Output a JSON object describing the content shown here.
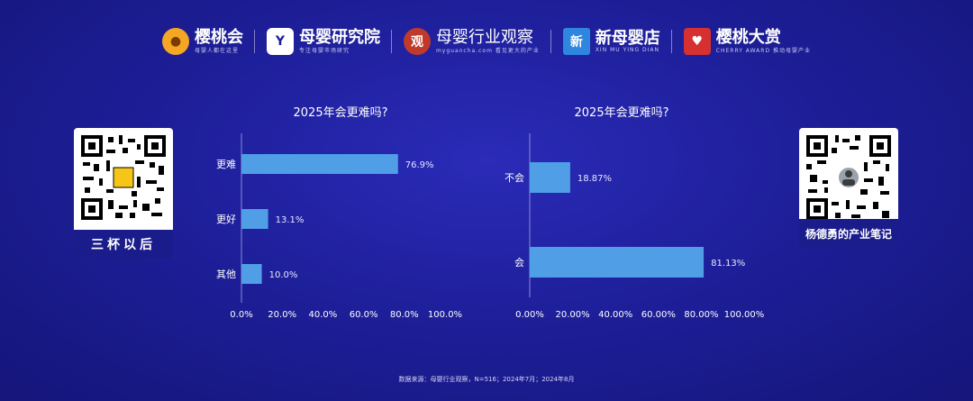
{
  "logos": [
    {
      "name": "樱桃会",
      "sub": "母婴人都在这里",
      "mark": "●",
      "color": "#f5a623"
    },
    {
      "name": "母婴研究院",
      "sub": "专注母婴市场研究",
      "mark": "Y",
      "color": "#3a7bd5"
    },
    {
      "name": "母婴行业观察",
      "sub": "myguancha.com 看见更大的产业",
      "mark": "观",
      "color": "#c0392b"
    },
    {
      "name": "新母婴店",
      "sub": "XIN MU YING DIAN",
      "mark": "新",
      "color": "#2e86de"
    },
    {
      "name": "樱桃大赏",
      "sub": "CHERRY AWARD 推动母婴产业",
      "mark": "♥",
      "color": "#d63031"
    }
  ],
  "qr_left": {
    "caption": "三杯以后"
  },
  "qr_right": {
    "caption": "杨德勇的产业笔记"
  },
  "footnote": "数据来源：母婴行业观察，N=516；2024年7月；2024年8月",
  "chart_data": [
    {
      "type": "bar",
      "orientation": "horizontal",
      "title": "2025年会更难吗?",
      "categories": [
        "更难",
        "更好",
        "其他"
      ],
      "values": [
        76.9,
        13.1,
        10.0
      ],
      "value_labels": [
        "76.9%",
        "13.1%",
        "10.0%"
      ],
      "xlim": [
        0,
        100
      ],
      "xticks": [
        "0.0%",
        "20.0%",
        "40.0%",
        "60.0%",
        "80.0%",
        "100.0%"
      ],
      "color": "#4f9ee6",
      "grid": false
    },
    {
      "type": "bar",
      "orientation": "horizontal",
      "title": "2025年会更难吗?",
      "categories": [
        "不会",
        "会"
      ],
      "values": [
        18.87,
        81.13
      ],
      "value_labels": [
        "18.87%",
        "81.13%"
      ],
      "xlim": [
        0,
        100
      ],
      "xticks": [
        "0.00%",
        "20.00%",
        "40.00%",
        "60.00%",
        "80.00%",
        "100.00%"
      ],
      "color": "#4f9ee6",
      "grid": false
    }
  ]
}
